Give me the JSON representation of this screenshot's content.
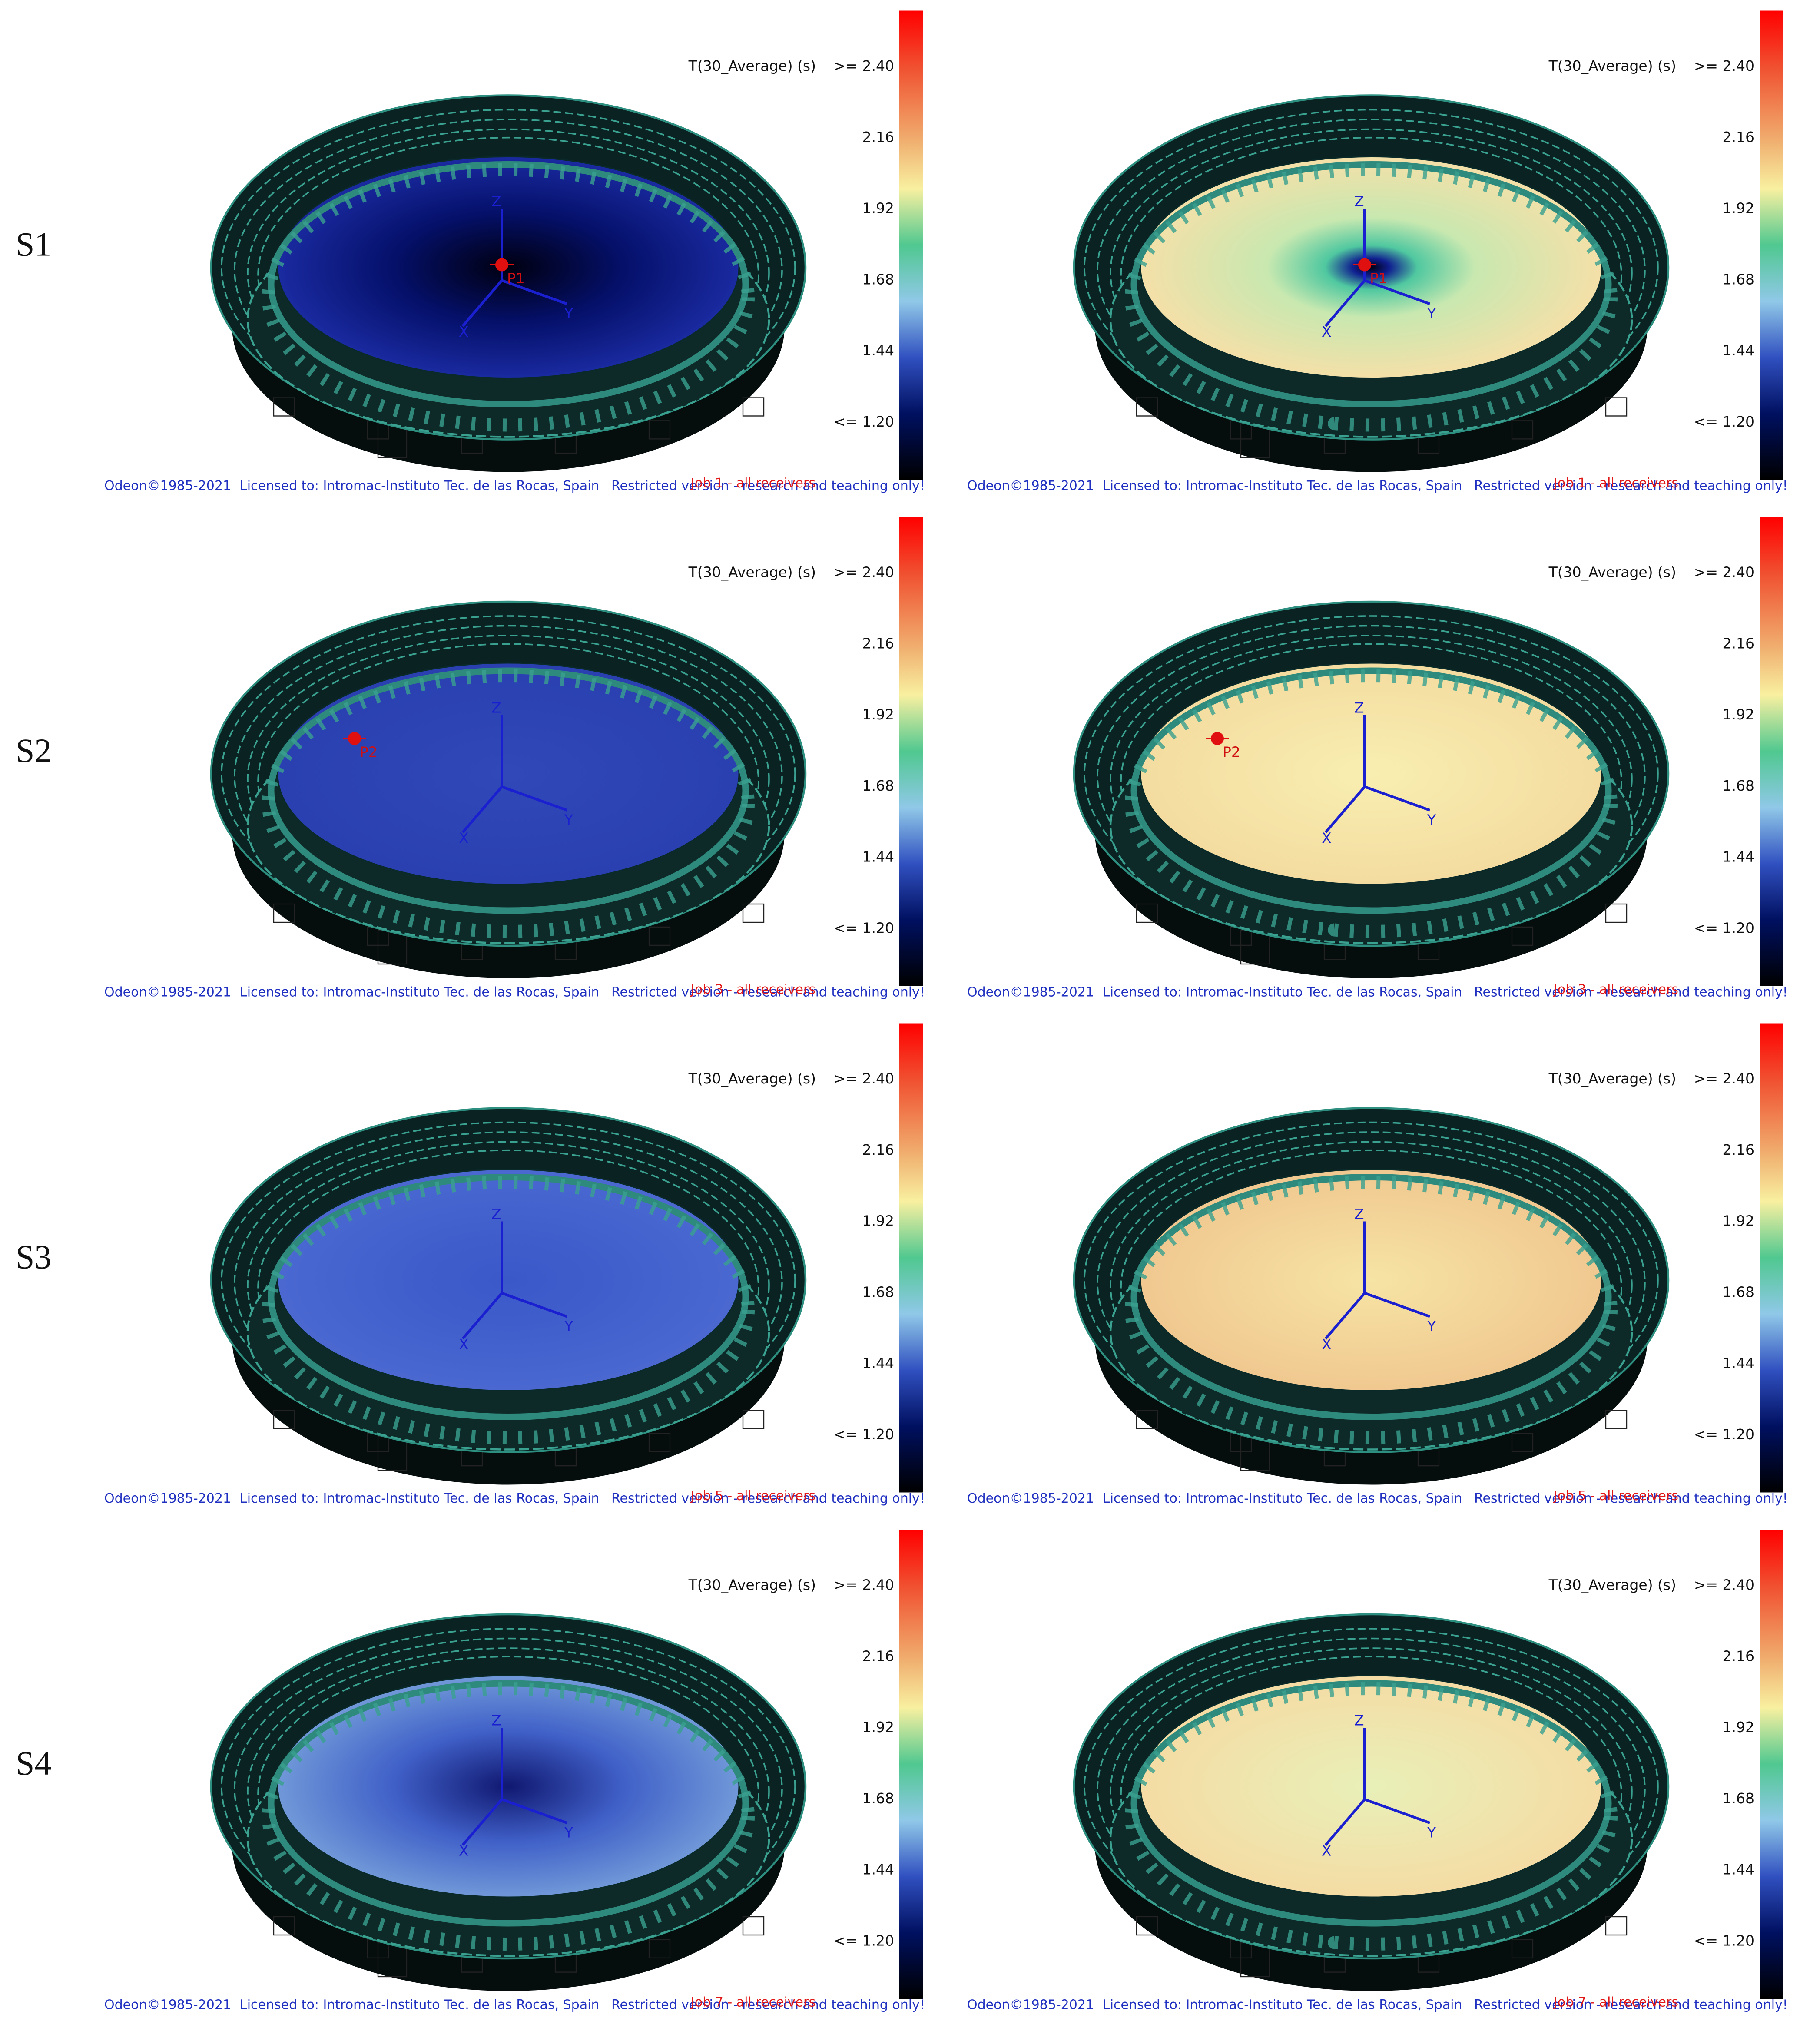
{
  "colorbar": {
    "title": "T(30_Average) (s)",
    "ticks": [
      {
        "value": 2.4,
        "label": ">= 2.40"
      },
      2.16,
      1.92,
      1.68,
      1.44,
      {
        "value": 1.2,
        "label": "<= 1.20"
      }
    ]
  },
  "footer": {
    "copyright": "Odeon©1985-2021",
    "license": "Licensed to: Intromac-Instituto Tec. de las Rocas, Spain",
    "restriction": "Restricted version - research and teaching only!"
  },
  "axes": [
    "X",
    "Y",
    "Z"
  ],
  "rows": [
    {
      "label": "S1",
      "job": "Job 1 - all receivers",
      "receiver": "P1"
    },
    {
      "label": "S2",
      "job": "Job 3 - all receivers",
      "receiver": "P2"
    },
    {
      "label": "S3",
      "job": "Job 5 - all receivers"
    },
    {
      "label": "S4",
      "job": "Job 7 - all receivers"
    }
  ]
}
